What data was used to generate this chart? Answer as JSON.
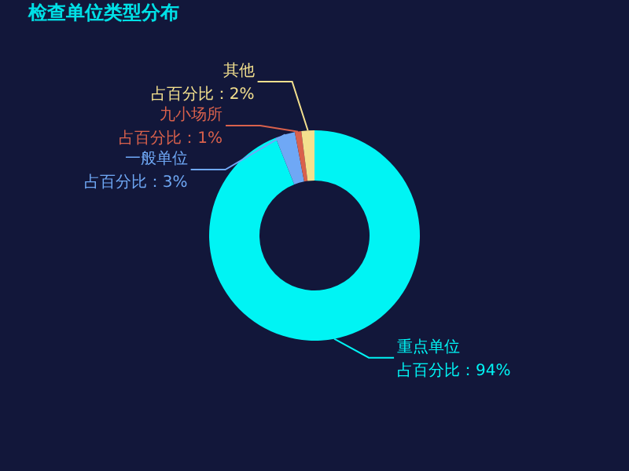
{
  "chart_data": {
    "type": "donut",
    "title": "检查单位类型分布",
    "categories": [
      "重点单位",
      "一般单位",
      "九小场所",
      "其他"
    ],
    "values": [
      94,
      3,
      1,
      2
    ],
    "colors": [
      "#00f4f4",
      "#6fa8f5",
      "#d9614c",
      "#f3e08e"
    ],
    "value_labels": [
      "占百分比：94%",
      "占百分比：3%",
      "占百分比：1%",
      "占百分比：2%"
    ]
  }
}
